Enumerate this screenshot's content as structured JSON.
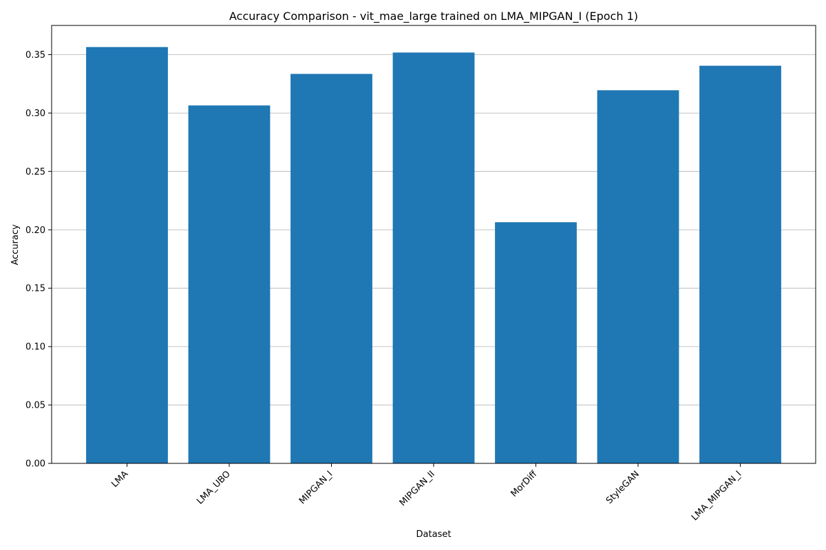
{
  "chart_data": {
    "type": "bar",
    "title": "Accuracy Comparison - vit_mae_large trained on LMA_MIPGAN_I (Epoch 1)",
    "xlabel": "Dataset",
    "ylabel": "Accuracy",
    "categories": [
      "LMA",
      "LMA_UBO",
      "MIPGAN_I",
      "MIPGAN_II",
      "MorDiff",
      "StyleGAN",
      "LMA_MIPGAN_I"
    ],
    "values": [
      0.3565,
      0.3065,
      0.3335,
      0.3518,
      0.2065,
      0.3195,
      0.3405
    ],
    "ylim": [
      0,
      0.375
    ],
    "yticks": [
      "0.00",
      "0.05",
      "0.10",
      "0.15",
      "0.20",
      "0.25",
      "0.30",
      "0.35"
    ],
    "grid": "horizontal",
    "bar_color": "#1f77b4",
    "grid_color": "#b0b0b0",
    "axis_color": "#000000"
  }
}
